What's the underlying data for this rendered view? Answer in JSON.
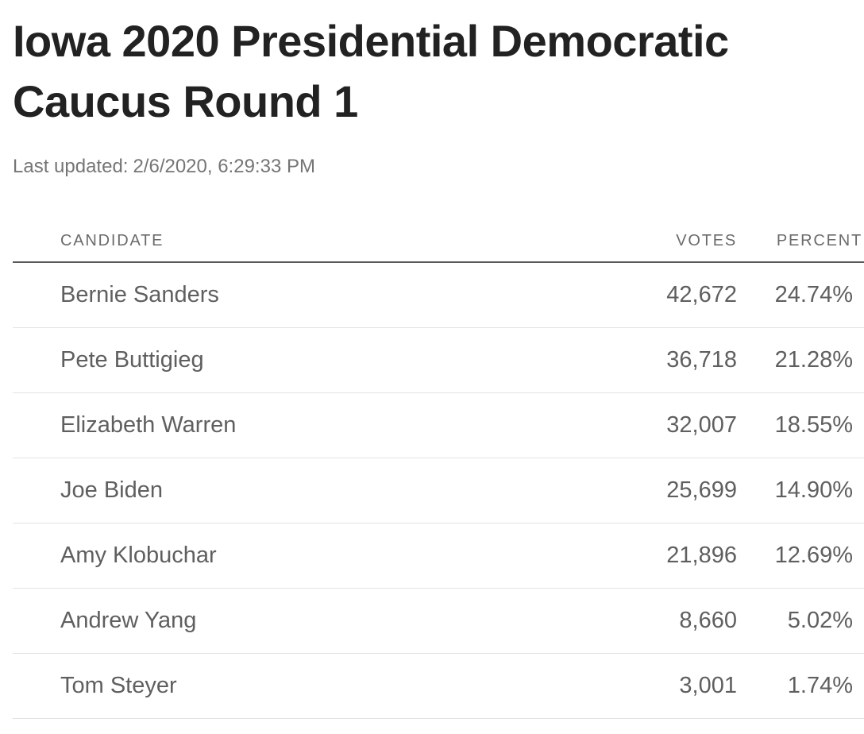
{
  "title": "Iowa 2020 Presidential Democratic Caucus Round 1",
  "updated": {
    "label": "Last updated:",
    "value": "2/6/2020, 6:29:33 PM"
  },
  "columns": {
    "candidate": "CANDIDATE",
    "votes": "VOTES",
    "percent": "PERCENT"
  },
  "chart_data": {
    "type": "table",
    "title": "Iowa 2020 Presidential Democratic Caucus Round 1",
    "columns": [
      "CANDIDATE",
      "VOTES",
      "PERCENT"
    ],
    "rows": [
      {
        "name": "Bernie Sanders",
        "votes": "42,672",
        "percent": "24.74%"
      },
      {
        "name": "Pete Buttigieg",
        "votes": "36,718",
        "percent": "21.28%"
      },
      {
        "name": "Elizabeth Warren",
        "votes": "32,007",
        "percent": "18.55%"
      },
      {
        "name": "Joe Biden",
        "votes": "25,699",
        "percent": "14.90%"
      },
      {
        "name": "Amy Klobuchar",
        "votes": "21,896",
        "percent": "12.69%"
      },
      {
        "name": "Andrew Yang",
        "votes": "8,660",
        "percent": "5.02%"
      },
      {
        "name": "Tom Steyer",
        "votes": "3,001",
        "percent": "1.74%"
      }
    ]
  }
}
